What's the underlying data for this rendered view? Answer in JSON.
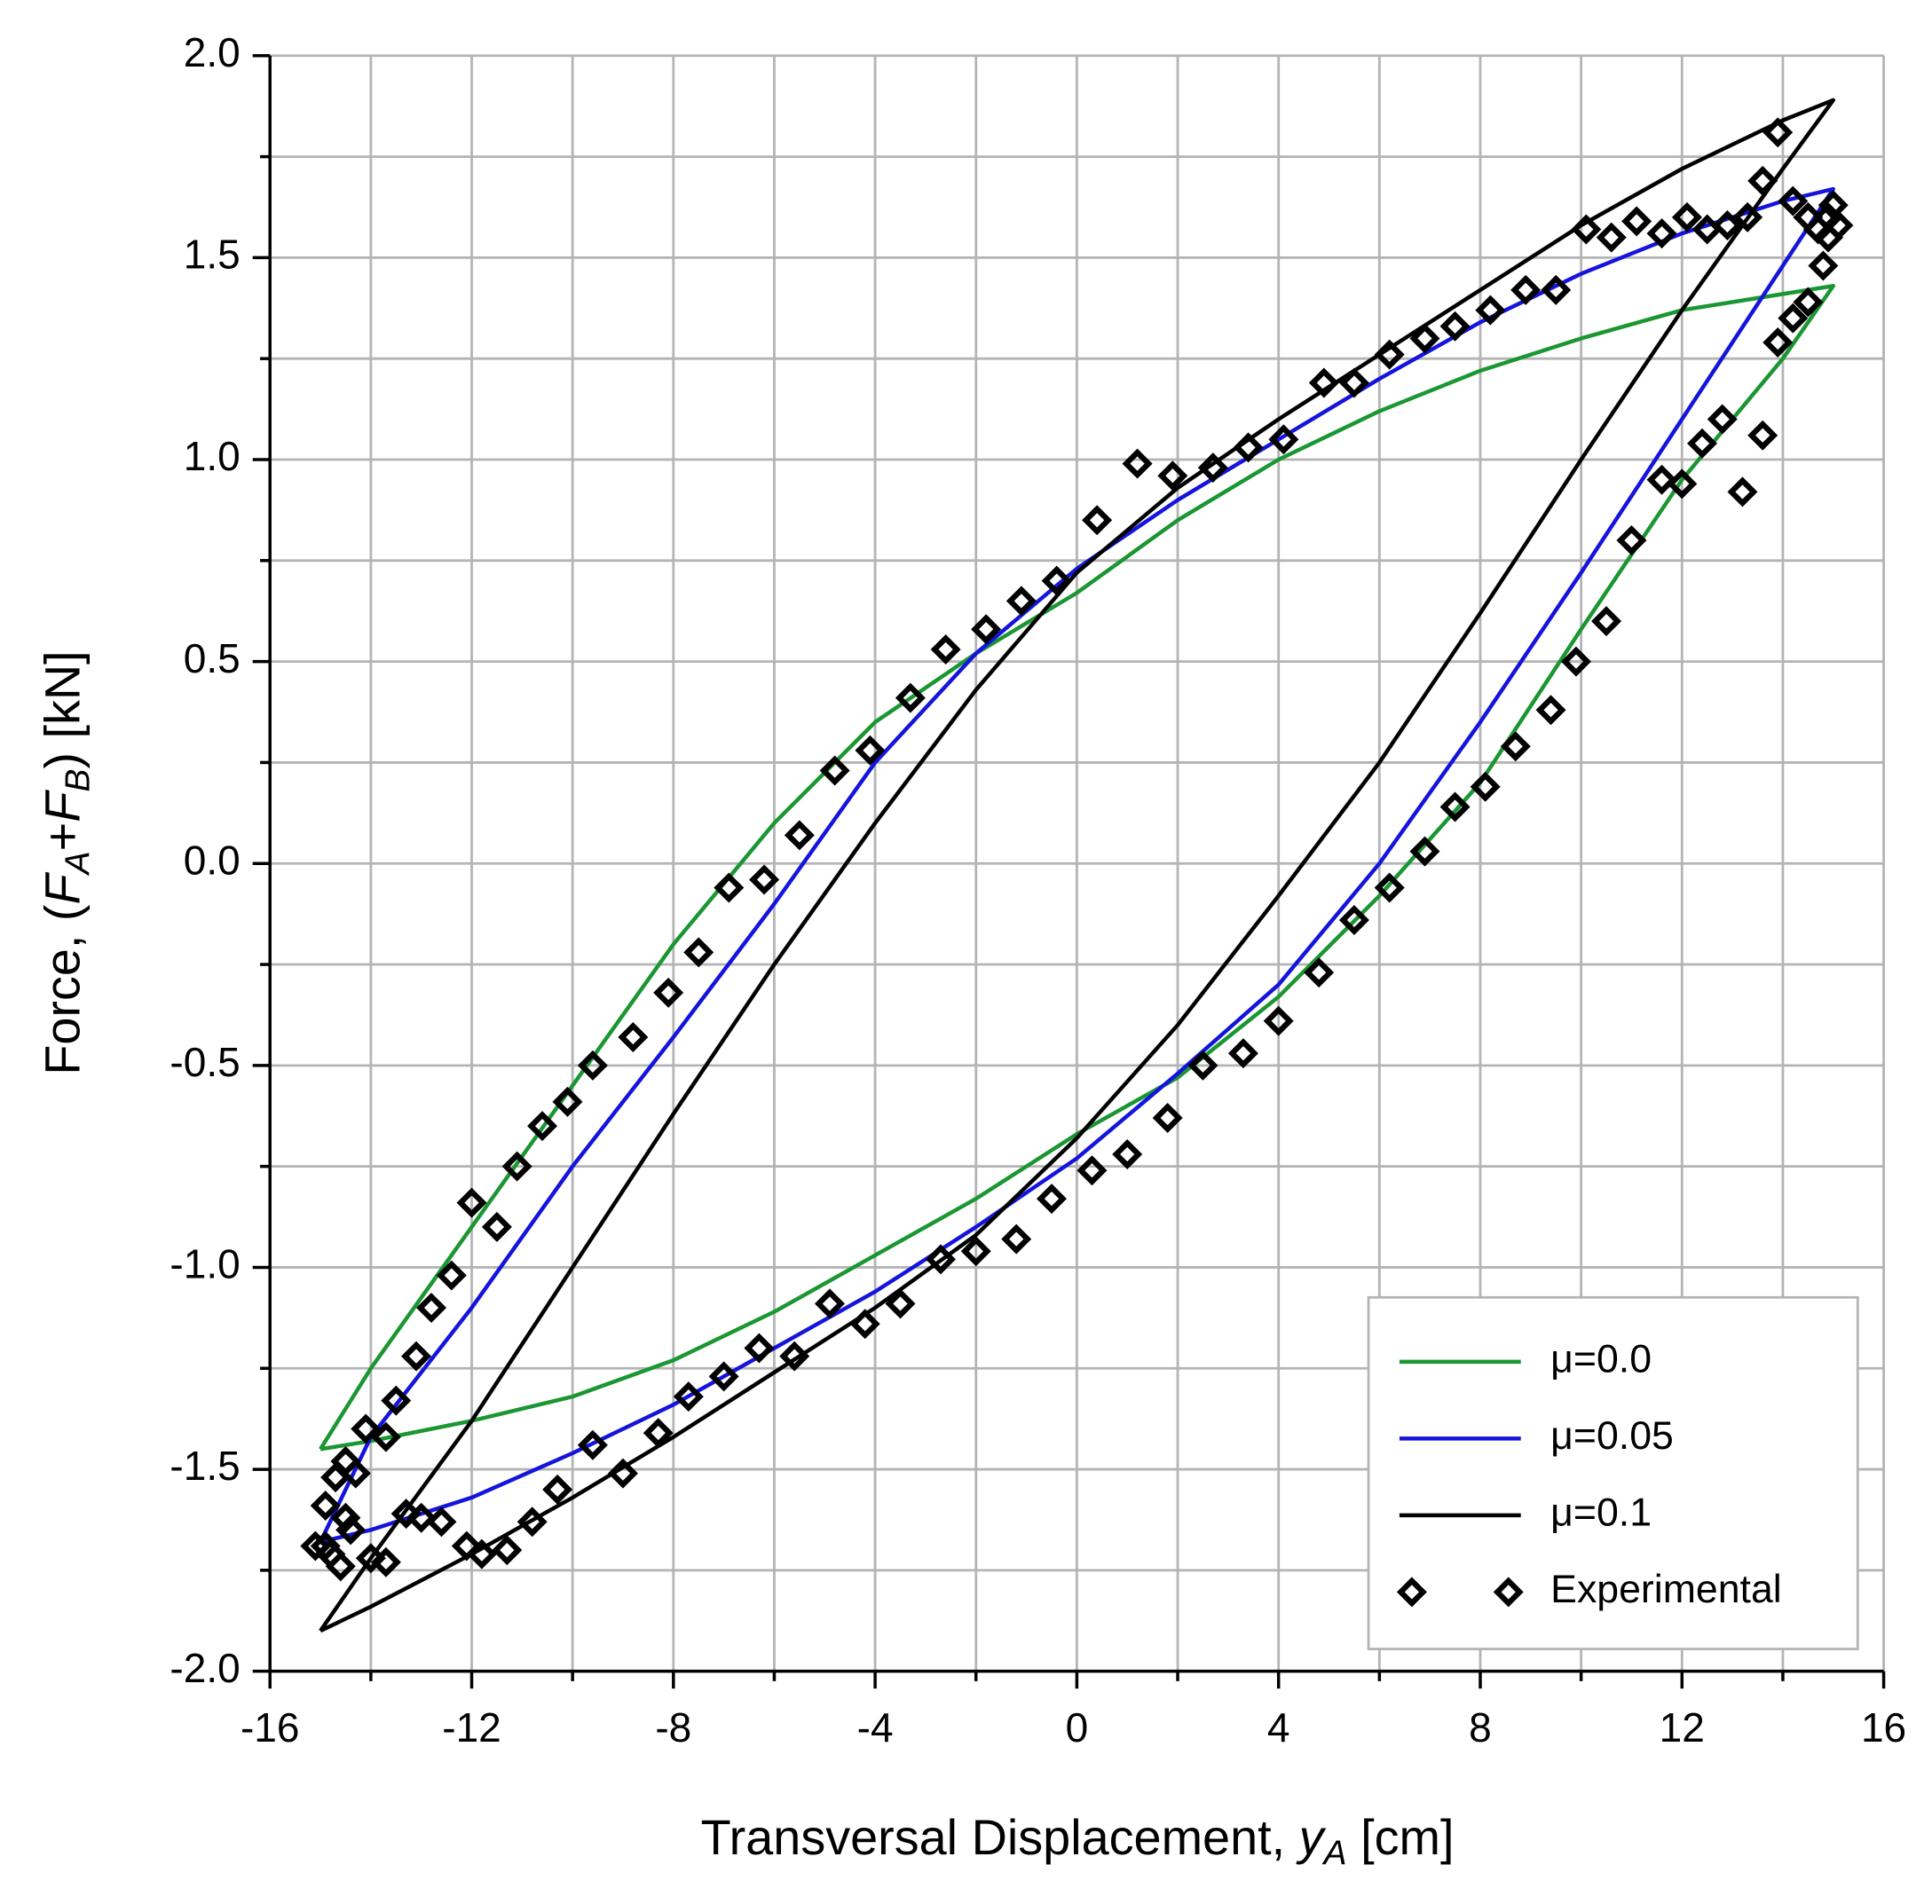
{
  "chart_data": {
    "type": "line",
    "xlabel_parts": [
      "Transversal Displacement, ",
      "y",
      "A",
      " [cm]"
    ],
    "ylabel_parts": [
      "Force, (",
      "F",
      "A",
      "+",
      "F",
      "B",
      ") [kN]"
    ],
    "xlim": [
      -16,
      16
    ],
    "ylim": [
      -2,
      2
    ],
    "xticks": [
      -16,
      -12,
      -8,
      -4,
      0,
      4,
      8,
      12,
      16
    ],
    "yticks": [
      {
        "value": 2,
        "label": "2.0"
      },
      1.5,
      {
        "value": 1,
        "label": "1.0"
      },
      0.5,
      {
        "value": 0,
        "label": "0.0"
      },
      -0.5,
      {
        "value": -1,
        "label": "-1.0"
      },
      -1.5,
      {
        "value": -2,
        "label": "-2.0"
      }
    ],
    "xminorticks": [
      -14,
      -10,
      -6,
      -2,
      2,
      6,
      10,
      14
    ],
    "yminorticks": [
      1.75,
      1.25,
      0.75,
      0.25,
      -0.25,
      -0.75,
      -1.25,
      -1.75
    ],
    "grid": true,
    "legend": "lower right",
    "series": [
      {
        "name": "μ=0.0",
        "color": "#1a9632",
        "x": [
          -15,
          -14,
          -12,
          -10,
          -8,
          -6,
          -4,
          -2,
          0,
          2,
          4,
          6,
          8,
          10,
          12,
          14,
          15,
          14,
          12,
          10,
          8,
          6,
          4,
          2,
          0,
          -2,
          -4,
          -6,
          -8,
          -10,
          -12,
          -14,
          -15
        ],
        "values": [
          -1.45,
          -1.25,
          -0.9,
          -0.55,
          -0.2,
          0.1,
          0.35,
          0.52,
          0.67,
          0.85,
          1.0,
          1.12,
          1.22,
          1.3,
          1.37,
          1.41,
          1.43,
          1.25,
          0.95,
          0.58,
          0.2,
          -0.08,
          -0.33,
          -0.53,
          -0.67,
          -0.83,
          -0.97,
          -1.11,
          -1.23,
          -1.32,
          -1.38,
          -1.43,
          -1.45
        ]
      },
      {
        "name": "μ=0.05",
        "color": "#1414dc",
        "x": [
          -15,
          -14,
          -12,
          -10,
          -8,
          -6,
          -4,
          -2,
          0,
          2,
          4,
          6,
          8,
          10,
          12,
          14,
          15,
          14,
          12,
          10,
          8,
          6,
          4,
          2,
          0,
          -2,
          -4,
          -6,
          -8,
          -10,
          -12,
          -14,
          -15
        ],
        "values": [
          -1.68,
          -1.42,
          -1.1,
          -0.75,
          -0.43,
          -0.1,
          0.25,
          0.52,
          0.73,
          0.9,
          1.05,
          1.2,
          1.34,
          1.46,
          1.56,
          1.64,
          1.67,
          1.48,
          1.1,
          0.72,
          0.35,
          0.0,
          -0.3,
          -0.52,
          -0.73,
          -0.9,
          -1.06,
          -1.2,
          -1.34,
          -1.46,
          -1.57,
          -1.65,
          -1.68
        ]
      },
      {
        "name": "μ=0.1",
        "color": "#000000",
        "x": [
          -15,
          -14,
          -12,
          -10,
          -8,
          -6,
          -4,
          -2,
          0,
          2,
          4,
          6,
          8,
          10,
          12,
          14,
          15,
          14,
          12,
          10,
          8,
          6,
          4,
          2,
          0,
          -2,
          -4,
          -6,
          -8,
          -10,
          -12,
          -14,
          -15
        ],
        "values": [
          -1.9,
          -1.72,
          -1.38,
          -1.0,
          -0.62,
          -0.25,
          0.1,
          0.43,
          0.72,
          0.93,
          1.1,
          1.26,
          1.42,
          1.58,
          1.72,
          1.84,
          1.89,
          1.72,
          1.37,
          1.0,
          0.62,
          0.25,
          -0.08,
          -0.4,
          -0.68,
          -0.92,
          -1.1,
          -1.26,
          -1.42,
          -1.57,
          -1.71,
          -1.84,
          -1.9
        ]
      },
      {
        "name": "Experimental",
        "color": "#000000",
        "marker": "diamond",
        "x": [
          -12,
          -11.5,
          -11.1,
          -10.6,
          -10.1,
          -9.6,
          -8.8,
          -8.1,
          -7.5,
          -6.9,
          -6.2,
          -5.5,
          -4.8,
          -4.1,
          -3.3,
          -2.6,
          -1.8,
          -1.1,
          -0.4,
          0.4,
          1.2,
          1.9,
          2.7,
          3.4,
          4.1,
          4.9,
          5.5,
          6.2,
          6.9,
          7.5,
          8.2,
          8.9,
          9.5,
          10.1,
          10.6,
          11.1,
          11.6,
          12.1,
          12.5,
          12.9,
          13.3,
          13.6,
          13.9,
          14.2,
          14.5,
          14.7,
          14.9,
          15.0,
          15.1,
          14.9,
          14.8,
          14.5,
          14.2,
          13.9,
          13.6,
          13.2,
          12.8,
          12.4,
          12.0,
          11.6,
          11.0,
          10.5,
          9.9,
          9.4,
          8.7,
          8.1,
          7.5,
          6.9,
          6.2,
          5.5,
          4.8,
          4.0,
          3.3,
          2.5,
          1.8,
          1.0,
          0.3,
          -0.5,
          -1.2,
          -2.0,
          -2.7,
          -3.5,
          -4.2,
          -4.9,
          -5.6,
          -6.3,
          -7.0,
          -7.7,
          -8.3,
          -9.0,
          -9.6,
          -10.3,
          -10.8,
          -11.3,
          -11.8,
          -12.1,
          -12.6,
          -13.0,
          -13.3,
          -13.7,
          -14.0,
          -14.4,
          -14.5,
          -14.6,
          -14.8,
          -14.9,
          -15.1,
          -14.9,
          -14.7,
          -14.5,
          -14.3,
          -14.1,
          -13.7,
          -13.5,
          -13.1,
          -12.8,
          -12.4
        ],
        "values": [
          -0.84,
          -0.9,
          -0.75,
          -0.65,
          -0.59,
          -0.5,
          -0.43,
          -0.32,
          -0.22,
          -0.06,
          -0.04,
          0.07,
          0.23,
          0.28,
          0.41,
          0.53,
          0.58,
          0.65,
          0.7,
          0.85,
          0.99,
          0.96,
          0.98,
          1.03,
          1.05,
          1.19,
          1.19,
          1.26,
          1.3,
          1.33,
          1.37,
          1.42,
          1.42,
          1.57,
          1.55,
          1.59,
          1.56,
          1.6,
          1.57,
          1.58,
          1.6,
          1.69,
          1.81,
          1.64,
          1.6,
          1.57,
          1.6,
          1.63,
          1.58,
          1.55,
          1.48,
          1.39,
          1.35,
          1.29,
          1.06,
          0.92,
          1.1,
          1.04,
          0.94,
          0.95,
          0.8,
          0.6,
          0.5,
          0.38,
          0.29,
          0.19,
          0.14,
          0.03,
          -0.06,
          -0.14,
          -0.27,
          -0.39,
          -0.47,
          -0.5,
          -0.63,
          -0.72,
          -0.76,
          -0.83,
          -0.93,
          -0.96,
          -0.98,
          -1.09,
          -1.14,
          -1.09,
          -1.22,
          -1.2,
          -1.27,
          -1.32,
          -1.41,
          -1.51,
          -1.44,
          -1.55,
          -1.63,
          -1.7,
          -1.71,
          -1.69,
          -1.63,
          -1.62,
          -1.61,
          -1.73,
          -1.72,
          -1.65,
          -1.62,
          -1.74,
          -1.71,
          -1.69,
          -1.69,
          -1.59,
          -1.52,
          -1.48,
          -1.51,
          -1.4,
          -1.42,
          -1.33,
          -1.22,
          -1.1,
          -1.02
        ]
      }
    ]
  }
}
